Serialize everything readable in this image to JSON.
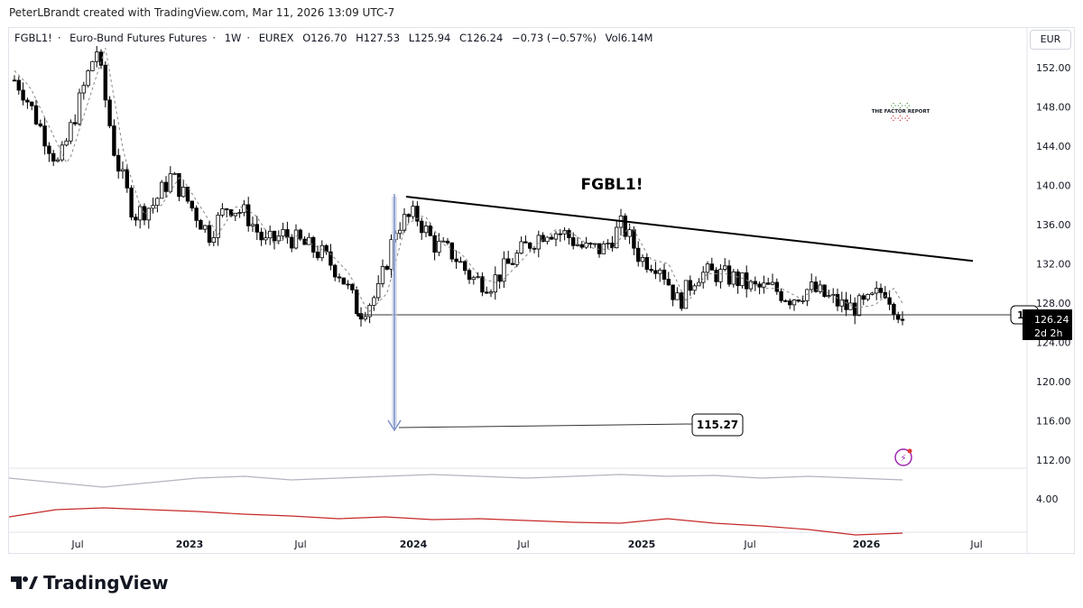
{
  "credit": "PeterLBrandt created with TradingView.com, Mar 11, 2026 13:09 UTC-7",
  "legend": {
    "symbol": "FGBL1!",
    "name": "Euro-Bund Futures Futures",
    "interval": "1W",
    "exchange": "EUREX",
    "open": "O126.70",
    "high": "H127.53",
    "low": "L125.94",
    "close": "C126.24",
    "change": "−0.73 (−0.57%)",
    "volume": "Vol6.14M"
  },
  "currency": "EUR",
  "watermark": "THE FACTOR REPORT",
  "brand": "TradingView",
  "colors": {
    "up": "#ffffff",
    "down": "#000000",
    "indicator_gray": "#b2b5be",
    "indicator_red": "#c62828",
    "arrow": "#7b8fc7"
  },
  "chart_data": {
    "type": "candlestick",
    "title": "FGBL1!",
    "y_ticks": [
      "152.00",
      "148.00",
      "144.00",
      "140.00",
      "136.00",
      "132.00",
      "128.00",
      "124.00",
      "120.00",
      "116.00",
      "112.00"
    ],
    "ylim": [
      111,
      156
    ],
    "x_ticks": [
      "Jul",
      "2023",
      "Jul",
      "2024",
      "Jul",
      "2025",
      "Jul",
      "2026",
      "Jul"
    ],
    "closes": [
      [
        "2022-03",
        152
      ],
      [
        "2022-04",
        150
      ],
      [
        "2022-05",
        146
      ],
      [
        "2022-06",
        142
      ],
      [
        "2022-07",
        148
      ],
      [
        "2022-08",
        154
      ],
      [
        "2022-09",
        143
      ],
      [
        "2022-10",
        137
      ],
      [
        "2022-11",
        138
      ],
      [
        "2022-12",
        141
      ],
      [
        "2023-01",
        138
      ],
      [
        "2023-02",
        135
      ],
      [
        "2023-03",
        138
      ],
      [
        "2023-04",
        137
      ],
      [
        "2023-05",
        134
      ],
      [
        "2023-06",
        135
      ],
      [
        "2023-07",
        134
      ],
      [
        "2023-08",
        133
      ],
      [
        "2023-09",
        131
      ],
      [
        "2023-10",
        127
      ],
      [
        "2023-11",
        129
      ],
      [
        "2023-12",
        136
      ],
      [
        "2024-01",
        137
      ],
      [
        "2024-02",
        134
      ],
      [
        "2024-03",
        133
      ],
      [
        "2024-04",
        130.5
      ],
      [
        "2024-05",
        130
      ],
      [
        "2024-06",
        132
      ],
      [
        "2024-07",
        134
      ],
      [
        "2024-08",
        135.5
      ],
      [
        "2024-09",
        135
      ],
      [
        "2024-10",
        133.5
      ],
      [
        "2024-11",
        133.5
      ],
      [
        "2024-12",
        136
      ],
      [
        "2025-01",
        132.5
      ],
      [
        "2025-02",
        132
      ],
      [
        "2025-03",
        128
      ],
      [
        "2025-04",
        131
      ],
      [
        "2025-05",
        131
      ],
      [
        "2025-06",
        130.5
      ],
      [
        "2025-07",
        129.5
      ],
      [
        "2025-08",
        129.5
      ],
      [
        "2025-09",
        128.5
      ],
      [
        "2025-10",
        129.5
      ],
      [
        "2025-11",
        128.5
      ],
      [
        "2025-12",
        127.5
      ],
      [
        "2026-01",
        127.8
      ],
      [
        "2026-02",
        129.5
      ],
      [
        "2026-03",
        126.24
      ]
    ],
    "last_price": "126.24",
    "countdown": "2d 2h",
    "support_label": "12",
    "support_level": 126.8,
    "trendline": [
      [
        "2023-12",
        138.85
      ],
      [
        "2026-07",
        132.3
      ]
    ],
    "target": "115.27",
    "indicator_tick": "4.00",
    "indicator_gray": [
      0.6,
      0.55,
      0.5,
      0.55,
      0.6,
      0.62,
      0.58,
      0.6,
      0.62,
      0.64,
      0.62,
      0.6,
      0.62,
      0.64,
      0.62,
      0.63,
      0.6,
      0.62,
      0.6,
      0.58
    ],
    "indicator_red": [
      0.12,
      0.2,
      0.22,
      0.2,
      0.18,
      0.15,
      0.13,
      0.1,
      0.12,
      0.09,
      0.1,
      0.08,
      0.06,
      0.05,
      0.1,
      0.05,
      0.02,
      -0.02,
      -0.08,
      -0.06
    ]
  }
}
